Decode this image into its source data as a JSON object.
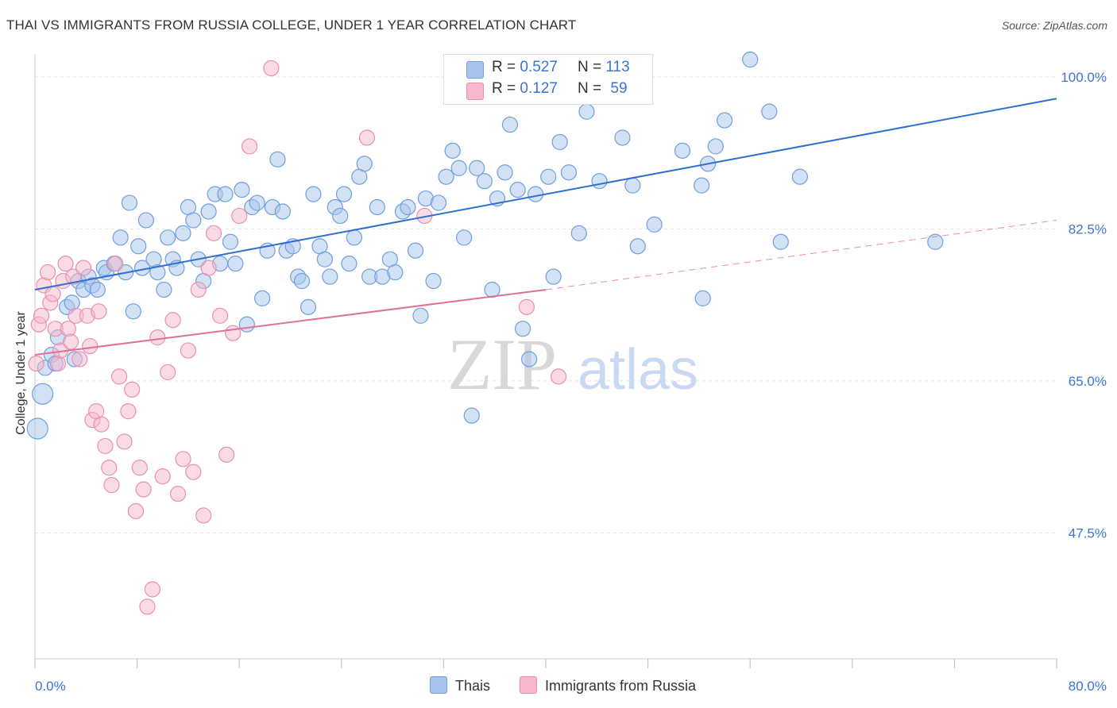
{
  "title": "THAI VS IMMIGRANTS FROM RUSSIA COLLEGE, UNDER 1 YEAR CORRELATION CHART",
  "source": "Source: ZipAtlas.com",
  "watermark": {
    "zip": "ZIP",
    "atlas": "atlas"
  },
  "legend": {
    "r_label": "R =",
    "n_label": "N =",
    "rows": [
      {
        "r": "0.527",
        "n": "113",
        "color": "#a8c4ec",
        "edge": "#6f9fdf"
      },
      {
        "r": "0.127",
        "n": "59",
        "color": "#f6b8cb",
        "edge": "#e890ad"
      }
    ]
  },
  "bottom_legend": [
    {
      "label": "Thais",
      "color": "#a8c4ec",
      "edge": "#6f9fdf"
    },
    {
      "label": "Immigrants from Russia",
      "color": "#f6b8cb",
      "edge": "#e890ad"
    }
  ],
  "chart_data": {
    "type": "scatter",
    "title": "THAI VS IMMIGRANTS FROM RUSSIA COLLEGE, UNDER 1 YEAR CORRELATION CHART",
    "xlabel": "",
    "ylabel": "College, Under 1 year",
    "xlim": [
      0,
      80
    ],
    "ylim": [
      33,
      102
    ],
    "x_tick_labels": [
      "0.0%",
      "80.0%"
    ],
    "y_tick_labels": [
      "100.0%",
      "82.5%",
      "65.0%",
      "47.5%"
    ],
    "y_ticks": [
      100,
      82.5,
      65,
      47.5
    ],
    "grid": true,
    "series": [
      {
        "name": "Thais",
        "color": "#6f9fdf",
        "fill": "#a8c4ec",
        "trend": {
          "x": [
            0,
            80
          ],
          "y": [
            75.5,
            97.5
          ],
          "color": "#2f6fd1"
        },
        "points": [
          [
            0.2,
            59.5
          ],
          [
            0.6,
            63.5
          ],
          [
            0.8,
            66.5
          ],
          [
            1.3,
            68.0
          ],
          [
            1.6,
            67.0
          ],
          [
            1.8,
            70.0
          ],
          [
            2.5,
            73.5
          ],
          [
            2.9,
            74.0
          ],
          [
            3.1,
            67.5
          ],
          [
            3.4,
            76.5
          ],
          [
            3.8,
            75.5
          ],
          [
            4.2,
            77.0
          ],
          [
            4.5,
            76.0
          ],
          [
            4.9,
            75.5
          ],
          [
            5.4,
            78.0
          ],
          [
            5.6,
            77.5
          ],
          [
            6.2,
            78.5
          ],
          [
            6.7,
            81.5
          ],
          [
            7.1,
            77.5
          ],
          [
            7.4,
            85.5
          ],
          [
            7.7,
            73.0
          ],
          [
            8.1,
            80.5
          ],
          [
            8.4,
            78.0
          ],
          [
            8.7,
            83.5
          ],
          [
            9.3,
            79.0
          ],
          [
            9.6,
            77.5
          ],
          [
            10.1,
            75.5
          ],
          [
            10.4,
            81.5
          ],
          [
            10.8,
            79.0
          ],
          [
            11.1,
            78.0
          ],
          [
            11.6,
            82.0
          ],
          [
            12.0,
            85.0
          ],
          [
            12.4,
            83.5
          ],
          [
            12.8,
            79.0
          ],
          [
            13.2,
            76.5
          ],
          [
            13.6,
            84.5
          ],
          [
            14.1,
            86.5
          ],
          [
            14.5,
            78.5
          ],
          [
            14.9,
            86.5
          ],
          [
            15.3,
            81.0
          ],
          [
            15.7,
            78.5
          ],
          [
            16.2,
            87.0
          ],
          [
            16.6,
            71.5
          ],
          [
            17.0,
            85.0
          ],
          [
            17.4,
            85.5
          ],
          [
            17.8,
            74.5
          ],
          [
            18.2,
            80.0
          ],
          [
            18.6,
            85.0
          ],
          [
            19.0,
            90.5
          ],
          [
            19.4,
            84.5
          ],
          [
            19.7,
            80.0
          ],
          [
            20.2,
            80.5
          ],
          [
            20.6,
            77.0
          ],
          [
            20.9,
            76.5
          ],
          [
            21.4,
            73.5
          ],
          [
            21.8,
            86.5
          ],
          [
            22.3,
            80.5
          ],
          [
            22.7,
            79.0
          ],
          [
            23.1,
            77.0
          ],
          [
            23.5,
            85.0
          ],
          [
            23.9,
            84.0
          ],
          [
            24.2,
            86.5
          ],
          [
            24.6,
            78.5
          ],
          [
            25.0,
            81.5
          ],
          [
            25.4,
            88.5
          ],
          [
            25.8,
            90.0
          ],
          [
            26.2,
            77.0
          ],
          [
            26.8,
            85.0
          ],
          [
            27.2,
            77.0
          ],
          [
            27.8,
            79.0
          ],
          [
            28.2,
            77.5
          ],
          [
            28.8,
            84.5
          ],
          [
            29.2,
            85.0
          ],
          [
            29.8,
            80.0
          ],
          [
            30.2,
            72.5
          ],
          [
            30.6,
            86.0
          ],
          [
            31.2,
            76.5
          ],
          [
            31.6,
            85.5
          ],
          [
            32.2,
            88.5
          ],
          [
            32.7,
            91.5
          ],
          [
            33.2,
            89.5
          ],
          [
            33.6,
            81.5
          ],
          [
            34.2,
            61.0
          ],
          [
            34.6,
            89.5
          ],
          [
            35.2,
            88.0
          ],
          [
            35.8,
            75.5
          ],
          [
            36.2,
            86.0
          ],
          [
            36.8,
            89.0
          ],
          [
            37.2,
            94.5
          ],
          [
            37.8,
            87.0
          ],
          [
            38.2,
            71.0
          ],
          [
            38.7,
            67.5
          ],
          [
            39.2,
            86.5
          ],
          [
            40.2,
            88.5
          ],
          [
            40.6,
            77.0
          ],
          [
            41.1,
            92.5
          ],
          [
            41.8,
            89.0
          ],
          [
            42.6,
            82.0
          ],
          [
            43.2,
            96.0
          ],
          [
            44.2,
            88.0
          ],
          [
            46.0,
            93.0
          ],
          [
            46.8,
            87.5
          ],
          [
            48.5,
            83.0
          ],
          [
            47.2,
            80.5
          ],
          [
            47.0,
            99.0
          ],
          [
            50.7,
            91.5
          ],
          [
            52.2,
            87.5
          ],
          [
            52.7,
            90.0
          ],
          [
            53.3,
            92.0
          ],
          [
            54.0,
            95.0
          ],
          [
            56.0,
            102.0
          ],
          [
            57.5,
            96.0
          ],
          [
            58.4,
            81.0
          ],
          [
            59.9,
            88.5
          ],
          [
            70.5,
            81.0
          ],
          [
            52.3,
            74.5
          ]
        ]
      },
      {
        "name": "Immigrants from Russia",
        "color": "#e890ad",
        "fill": "#f6b8cb",
        "trend": {
          "x": [
            0,
            40
          ],
          "y": [
            68.0,
            75.5
          ],
          "color": "#e0709a",
          "dashed_to": [
            80,
            83.5
          ]
        },
        "points": [
          [
            0.1,
            67.0
          ],
          [
            0.3,
            71.5
          ],
          [
            0.5,
            72.5
          ],
          [
            0.7,
            76.0
          ],
          [
            1.0,
            77.5
          ],
          [
            1.2,
            74.0
          ],
          [
            1.4,
            75.0
          ],
          [
            1.6,
            71.0
          ],
          [
            1.8,
            67.0
          ],
          [
            2.0,
            68.5
          ],
          [
            2.2,
            76.5
          ],
          [
            2.6,
            71.0
          ],
          [
            2.8,
            69.5
          ],
          [
            3.0,
            77.0
          ],
          [
            3.2,
            72.5
          ],
          [
            3.5,
            67.5
          ],
          [
            3.8,
            78.0
          ],
          [
            4.1,
            72.5
          ],
          [
            4.3,
            69.0
          ],
          [
            4.5,
            60.5
          ],
          [
            4.8,
            61.5
          ],
          [
            5.0,
            73.0
          ],
          [
            5.2,
            60.0
          ],
          [
            5.5,
            57.5
          ],
          [
            5.8,
            55.0
          ],
          [
            6.0,
            53.0
          ],
          [
            6.3,
            78.5
          ],
          [
            6.6,
            65.5
          ],
          [
            7.0,
            58.0
          ],
          [
            7.3,
            61.5
          ],
          [
            7.6,
            64.0
          ],
          [
            7.9,
            50.0
          ],
          [
            8.2,
            55.0
          ],
          [
            8.5,
            52.5
          ],
          [
            8.8,
            39.0
          ],
          [
            9.2,
            41.0
          ],
          [
            9.6,
            70.0
          ],
          [
            10.0,
            54.0
          ],
          [
            10.4,
            66.0
          ],
          [
            10.8,
            72.0
          ],
          [
            11.2,
            52.0
          ],
          [
            11.6,
            56.0
          ],
          [
            12.0,
            68.5
          ],
          [
            12.4,
            54.5
          ],
          [
            12.8,
            75.5
          ],
          [
            13.2,
            49.5
          ],
          [
            13.6,
            78.0
          ],
          [
            14.0,
            82.0
          ],
          [
            14.5,
            72.5
          ],
          [
            15.0,
            56.5
          ],
          [
            15.5,
            70.5
          ],
          [
            16.0,
            84.0
          ],
          [
            16.8,
            92.0
          ],
          [
            18.5,
            101.0
          ],
          [
            26.0,
            93.0
          ],
          [
            30.5,
            84.0
          ],
          [
            38.5,
            73.5
          ],
          [
            41.0,
            65.5
          ],
          [
            2.4,
            78.5
          ]
        ]
      }
    ]
  }
}
